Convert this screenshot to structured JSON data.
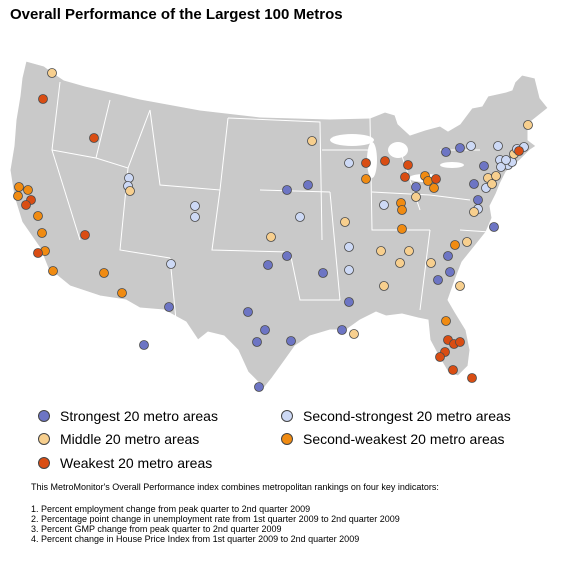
{
  "title": "Overall Performance of the Largest 100 Metros",
  "categories": {
    "strongest": {
      "label": "Strongest 20 metro areas",
      "color": "#6d75c4"
    },
    "second_strongest": {
      "label": "Second-strongest 20 metro areas",
      "color": "#cdd9f5"
    },
    "middle": {
      "label": "Middle 20 metro areas",
      "color": "#f7cf8e"
    },
    "second_weakest": {
      "label": "Second-weakest 20 metro areas",
      "color": "#f08b12"
    },
    "weakest": {
      "label": "Weakest 20 metro areas",
      "color": "#d94d13"
    }
  },
  "note": {
    "intro": "This MetroMonitor's Overall Performance index combines metropolitan rankings on four key indicators:",
    "items": [
      "1. Percent employment change from peak quarter to 2nd quarter 2009",
      "2. Percentage point change in unemployment rate from 1st quarter 2009 to 2nd quarter 2009",
      "3. Percent GMP change from peak quarter to 2nd quarter 2009",
      "4. Percent change in House Price Index from 1st quarter 2009 to 2nd quarter 2009"
    ]
  }
}
